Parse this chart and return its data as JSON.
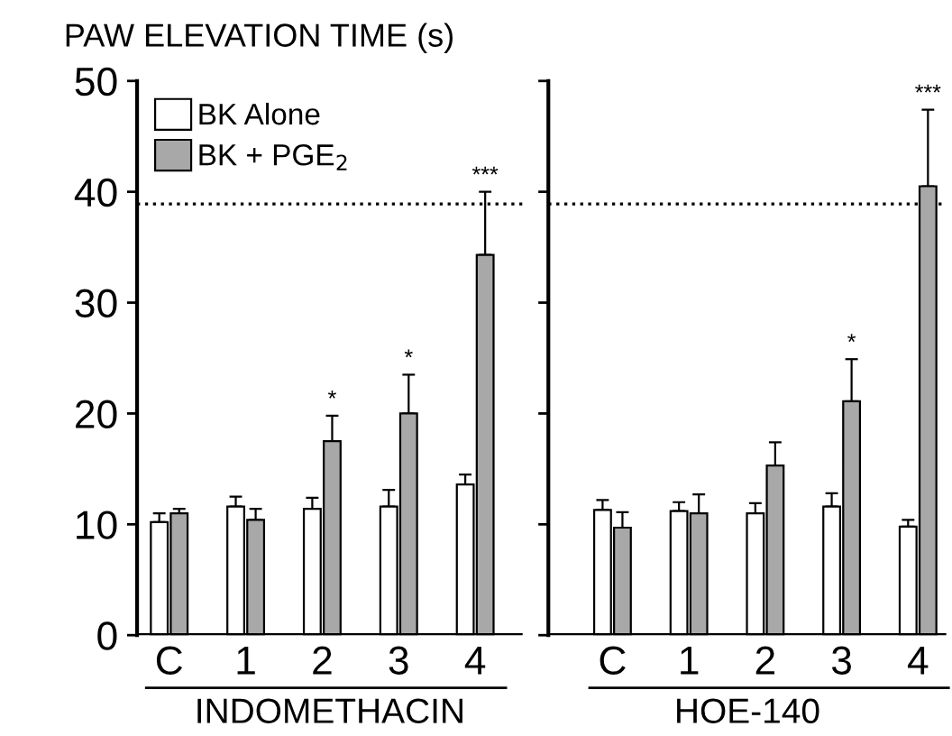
{
  "chart_data": [
    {
      "type": "bar",
      "ylabel": "PAW ELEVATION TIME (s)",
      "xlabel": "INDOMETHACIN",
      "categories": [
        "C",
        "1",
        "2",
        "3",
        "4"
      ],
      "ylim": [
        0,
        50
      ],
      "yticks": [
        0,
        10,
        20,
        30,
        40,
        50
      ],
      "legend": "top left",
      "series": [
        {
          "name": "BK Alone",
          "color": "#ffffff",
          "values": [
            10.2,
            11.6,
            11.4,
            11.6,
            13.6
          ],
          "errors": [
            [
              10.2,
              11.0
            ],
            [
              11.6,
              12.5
            ],
            [
              11.4,
              12.4
            ],
            [
              11.6,
              13.1
            ],
            [
              13.6,
              14.5
            ]
          ]
        },
        {
          "name": "BK + PGE$_{2}$",
          "color": "#a8a8a8",
          "values": [
            11.0,
            10.4,
            17.5,
            20.0,
            34.3
          ],
          "errors": [
            [
              11.0,
              11.4
            ],
            [
              10.4,
              11.4
            ],
            [
              17.5,
              19.8
            ],
            [
              20.0,
              23.5
            ],
            [
              34.3,
              40.0
            ]
          ]
        }
      ],
      "ref_lines": [
        {
          "axis": "y",
          "value": 38.9,
          "line_style": "dotted",
          "color": "#000000"
        }
      ],
      "annotations": [
        {
          "text": "*",
          "x": "2",
          "y": 19.8
        },
        {
          "text": "*",
          "x": "3",
          "y": 23.5
        },
        {
          "text": "***",
          "x": "4",
          "y": 40.0
        }
      ]
    },
    {
      "type": "bar",
      "xlabel": "HOE-140",
      "categories": [
        "C",
        "1",
        "2",
        "3",
        "4"
      ],
      "ylim": [
        0,
        50
      ],
      "yticks": [
        0,
        10,
        20,
        30,
        40,
        50
      ],
      "tick_labels": "x",
      "series": [
        {
          "color": "#ffffff",
          "values": [
            11.3,
            11.2,
            11.0,
            11.6,
            9.8
          ],
          "errors": [
            [
              11.3,
              12.2
            ],
            [
              11.2,
              12.0
            ],
            [
              11.0,
              11.9
            ],
            [
              11.6,
              12.8
            ],
            [
              9.8,
              10.4
            ]
          ]
        },
        {
          "color": "#a8a8a8",
          "values": [
            9.7,
            11.0,
            15.3,
            21.1,
            40.5
          ],
          "errors": [
            [
              9.7,
              11.1
            ],
            [
              11.0,
              12.7
            ],
            [
              15.3,
              17.4
            ],
            [
              21.1,
              24.9
            ],
            [
              40.5,
              47.4
            ]
          ]
        }
      ],
      "ref_lines": [
        {
          "axis": "y",
          "value": 38.9,
          "line_style": "dotted",
          "color": "#000000"
        }
      ],
      "annotations": [
        {
          "text": "*",
          "x": "3",
          "y": 24.9
        },
        {
          "text": "***",
          "x": "4",
          "y": 47.4
        }
      ]
    }
  ]
}
